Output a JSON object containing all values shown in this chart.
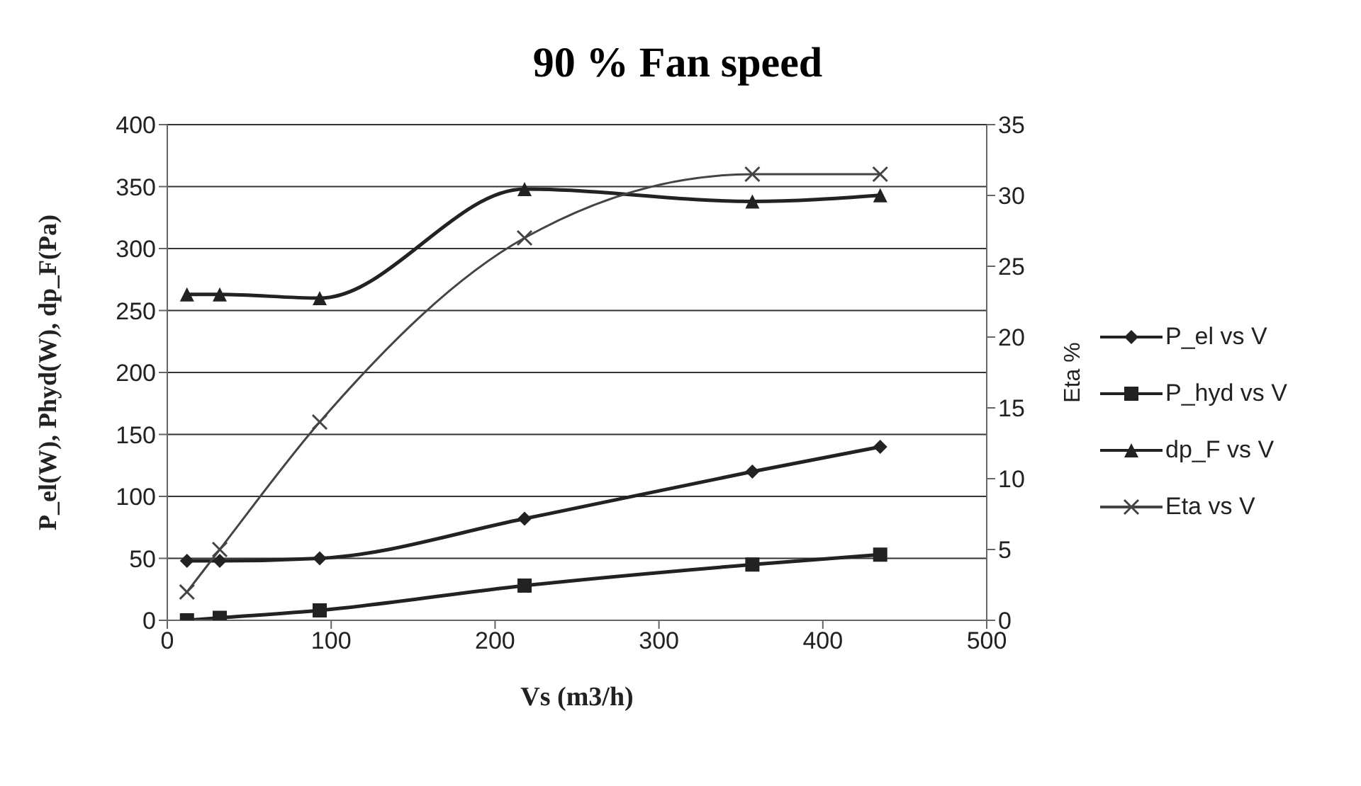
{
  "chart_data": {
    "type": "line",
    "title": "90 % Fan speed",
    "xlabel": "Vs (m3/h)",
    "ylabel": "P_el(W), Phyd(W), dp_F(Pa)",
    "y2label": "Eta %",
    "x": [
      12,
      32,
      93,
      218,
      357,
      435
    ],
    "series": [
      {
        "name": "P_el vs V",
        "color": "#222222",
        "marker": "diamond",
        "values": [
          48,
          48,
          50,
          82,
          120,
          140
        ]
      },
      {
        "name": "P_hyd vs V",
        "color": "#222222",
        "marker": "square",
        "values": [
          0,
          2,
          8,
          28,
          45,
          53
        ]
      },
      {
        "name": "dp_F vs V",
        "color": "#222222",
        "marker": "triangle",
        "values": [
          263,
          263,
          260,
          348,
          338,
          343
        ]
      },
      {
        "name": "Eta vs V",
        "color": "#444444",
        "marker": "cross",
        "axis": "y2",
        "values": [
          2,
          5,
          14,
          27,
          31.5,
          31.5
        ]
      }
    ],
    "xlim": [
      0,
      500
    ],
    "xticks": [
      0,
      100,
      200,
      300,
      400,
      500
    ],
    "ylim": [
      0,
      400
    ],
    "yticks": [
      0,
      50,
      100,
      150,
      200,
      250,
      300,
      350,
      400
    ],
    "y2lim": [
      0,
      35
    ],
    "y2ticks": [
      0,
      5,
      10,
      15,
      20,
      25,
      30,
      35
    ],
    "grid": "y",
    "legend": "right",
    "line_style": "solid"
  }
}
